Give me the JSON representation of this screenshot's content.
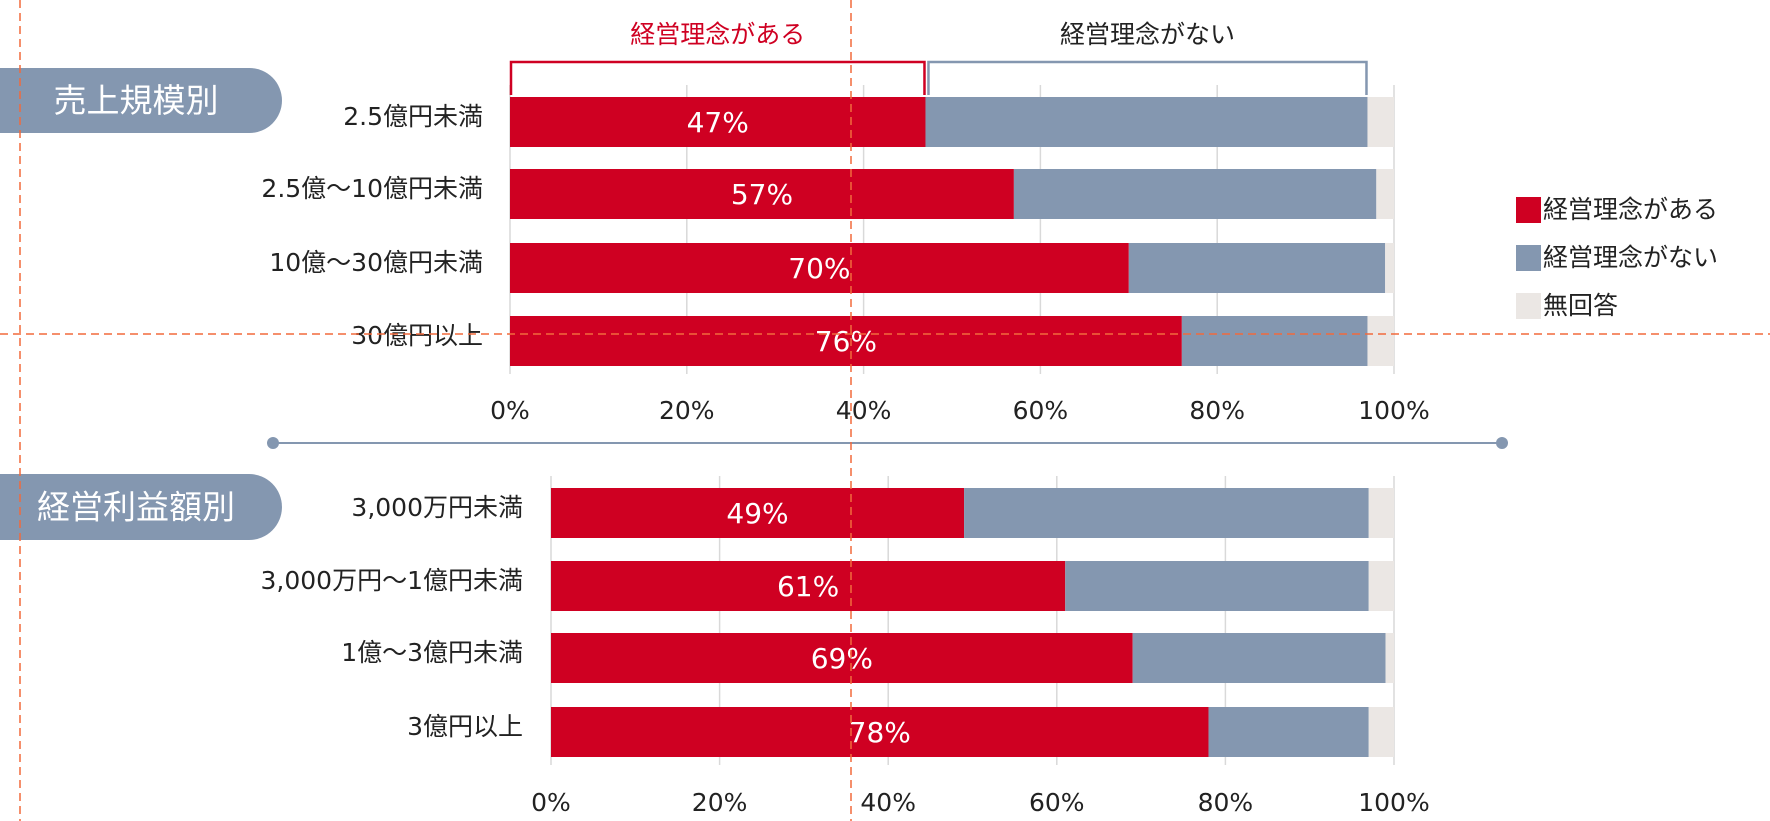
{
  "chart_data": [
    {
      "type": "stacked-bar-horizontal",
      "title": "売上規模別",
      "annotations": [
        "経営理念がある",
        "経営理念がない"
      ],
      "categories": [
        "2.5億円未満",
        "2.5億～10億円未満",
        "10億～30億円未満",
        "30億円以上"
      ],
      "series": [
        {
          "name": "経営理念がある",
          "color": "#cf0022",
          "values": [
            47,
            57,
            70,
            76
          ],
          "value_labels": [
            "47%",
            "57%",
            "70%",
            "76%"
          ]
        },
        {
          "name": "経営理念がない",
          "color": "#8497b0",
          "values": [
            50,
            41,
            29,
            21
          ]
        },
        {
          "name": "無回答",
          "color": "#ebe7e4",
          "values": [
            3,
            2,
            1,
            3
          ]
        }
      ],
      "xlim": [
        0,
        100
      ],
      "xticks": [
        {
          "value": 0,
          "label": "0%"
        },
        {
          "value": 20,
          "label": "20%"
        },
        {
          "value": 40,
          "label": "40%"
        },
        {
          "value": 60,
          "label": "60%"
        },
        {
          "value": 80,
          "label": "80%"
        },
        {
          "value": 100,
          "label": "100%"
        }
      ],
      "grid": true,
      "legend": "right"
    },
    {
      "type": "stacked-bar-horizontal",
      "title": "経営利益額別",
      "categories": [
        "3,000万円未満",
        "3,000万円～1億円未満",
        "1億～3億円未満",
        "3億円以上"
      ],
      "series": [
        {
          "color": "#cf0022",
          "values": [
            49,
            61,
            69,
            78
          ],
          "value_labels": [
            "49%",
            "61%",
            "69%",
            "78%"
          ]
        },
        {
          "color": "#8497b0",
          "values": [
            48,
            36,
            30,
            19
          ]
        },
        {
          "color": "#ebe7e4",
          "values": [
            3,
            3,
            1,
            3
          ]
        }
      ],
      "xlim": [
        0,
        100
      ],
      "xticks": [
        {
          "value": 0,
          "label": "0%"
        },
        {
          "value": 20,
          "label": "20%"
        },
        {
          "value": 40,
          "label": "40%"
        },
        {
          "value": 60,
          "label": "60%"
        },
        {
          "value": 80,
          "label": "80%"
        },
        {
          "value": 100,
          "label": "100%"
        }
      ],
      "grid": true
    }
  ]
}
